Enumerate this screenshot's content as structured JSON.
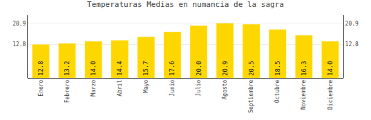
{
  "chart_data": {
    "type": "bar",
    "title": "Temperaturas Medias en numancia de la sagra",
    "categories": [
      "Enero",
      "Febrero",
      "Marzo",
      "Abril",
      "Mayo",
      "Junio",
      "Julio",
      "Agosto",
      "Septiembre",
      "Octubre",
      "Noviembre",
      "Diciembre"
    ],
    "values": [
      12.8,
      13.2,
      14.0,
      14.4,
      15.7,
      17.6,
      20.0,
      20.9,
      20.5,
      18.5,
      16.3,
      14.0
    ],
    "value_labels": [
      "12.8",
      "13.2",
      "14.0",
      "14.4",
      "15.7",
      "17.6",
      "20.0",
      "20.9",
      "20.5",
      "18.5",
      "16.3",
      "14.0"
    ],
    "data_labels": true,
    "color": "#FFD700",
    "ylim": [
      0,
      24
    ],
    "yticks": [
      12.8,
      20.9
    ],
    "y2lim": [
      0,
      24
    ],
    "y2ticks": [
      12.8,
      20.9
    ],
    "grid": true
  }
}
